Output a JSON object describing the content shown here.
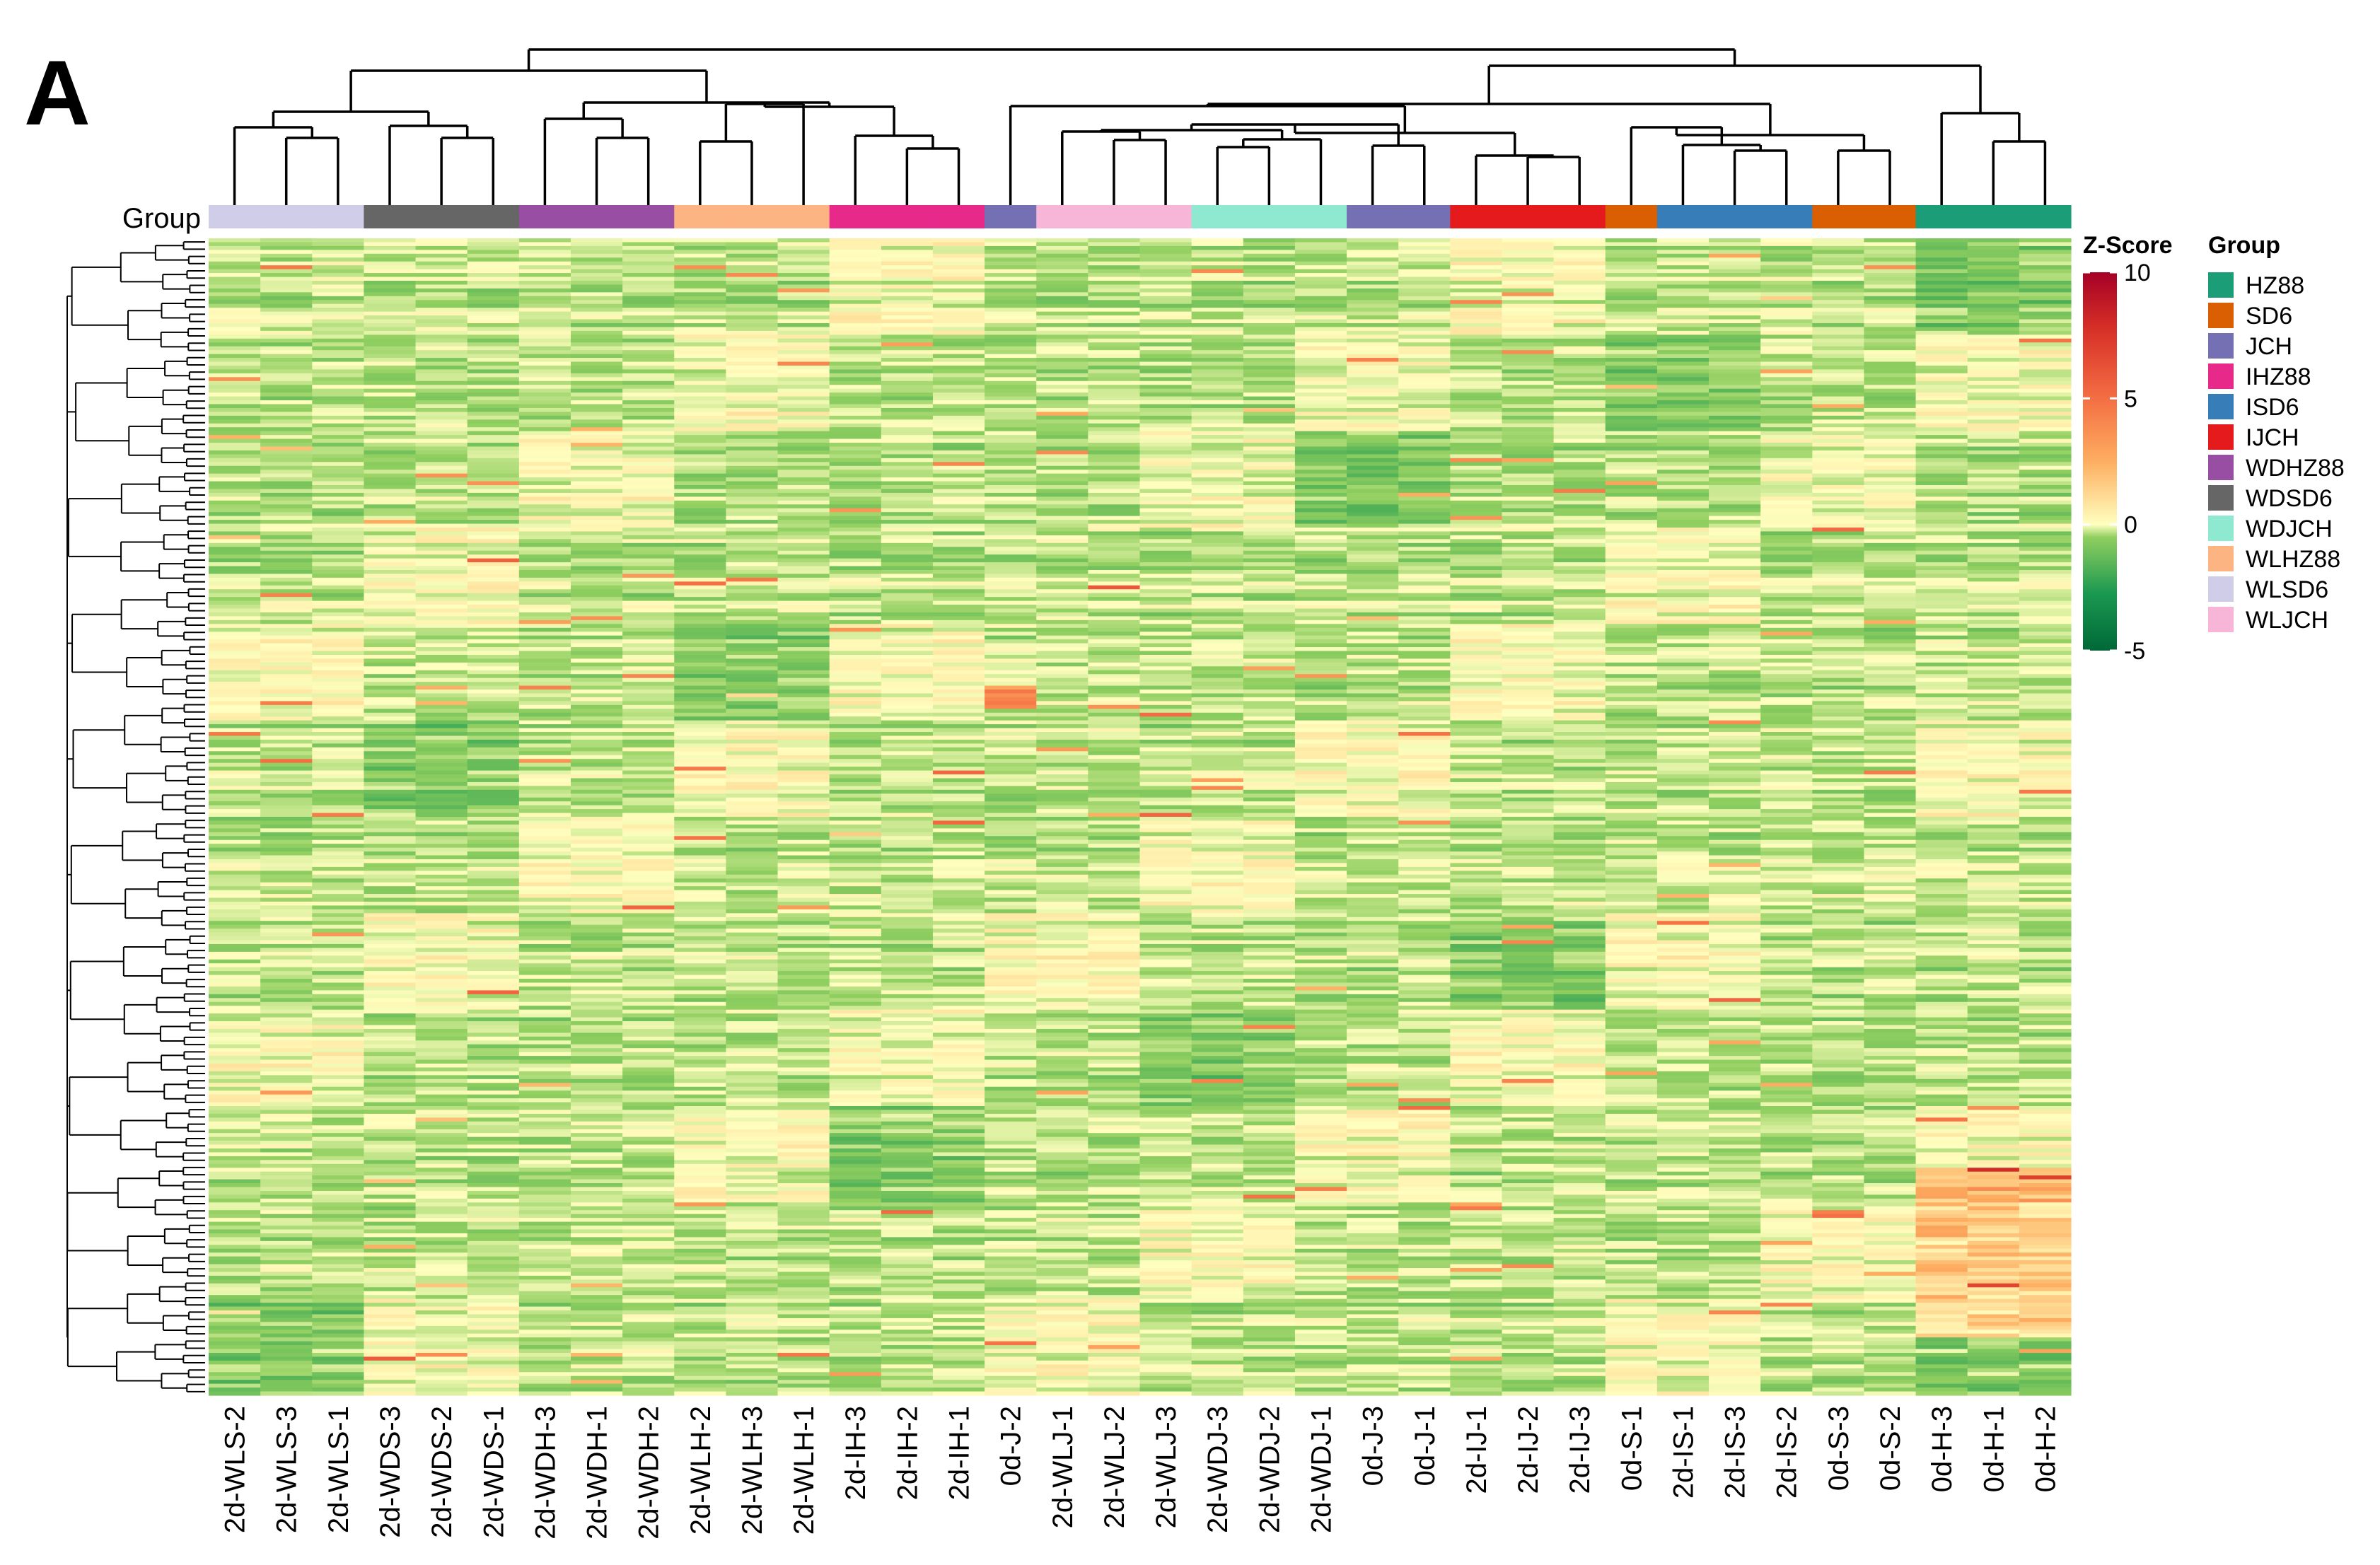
{
  "panel_label": "A",
  "chart_data": {
    "type": "heatmap",
    "columns": [
      "2d-WLS-2",
      "2d-WLS-3",
      "2d-WLS-1",
      "2d-WDS-3",
      "2d-WDS-2",
      "2d-WDS-1",
      "2d-WDH-3",
      "2d-WDH-1",
      "2d-WDH-2",
      "2d-WLH-2",
      "2d-WLH-3",
      "2d-WLH-1",
      "2d-IH-3",
      "2d-IH-2",
      "2d-IH-1",
      "0d-J-2",
      "2d-WLJ-1",
      "2d-WLJ-2",
      "2d-WLJ-3",
      "2d-WDJ-3",
      "2d-WDJ-2",
      "2d-WDJ-1",
      "0d-J-3",
      "0d-J-1",
      "2d-IJ-1",
      "2d-IJ-2",
      "2d-IJ-3",
      "0d-S-1",
      "2d-IS-1",
      "2d-IS-3",
      "2d-IS-2",
      "0d-S-3",
      "0d-S-2",
      "0d-H-3",
      "0d-H-1",
      "0d-H-2"
    ],
    "column_groups": [
      "WLSD6",
      "WLSD6",
      "WLSD6",
      "WDSD6",
      "WDSD6",
      "WDSD6",
      "WDHZ88",
      "WDHZ88",
      "WDHZ88",
      "WLHZ88",
      "WLHZ88",
      "WLHZ88",
      "IHZ88",
      "IHZ88",
      "IHZ88",
      "JCH",
      "WLJCH",
      "WLJCH",
      "WLJCH",
      "WDJCH",
      "WDJCH",
      "WDJCH",
      "JCH",
      "JCH",
      "IJCH",
      "IJCH",
      "IJCH",
      "SD6",
      "ISD6",
      "ISD6",
      "ISD6",
      "SD6",
      "SD6",
      "HZ88",
      "HZ88",
      "HZ88"
    ],
    "annotation_label": "Group",
    "colorbar": {
      "title": "Z-Score",
      "ticks": [
        "10",
        "5",
        "0",
        "-5"
      ],
      "range": [
        -5,
        10
      ]
    },
    "legend": {
      "title": "Group",
      "position": "right",
      "items": [
        {
          "name": "HZ88",
          "color": "#1b9e77"
        },
        {
          "name": "SD6",
          "color": "#d95f02"
        },
        {
          "name": "JCH",
          "color": "#7570b3"
        },
        {
          "name": "IHZ88",
          "color": "#e7298a"
        },
        {
          "name": "ISD6",
          "color": "#377eb8"
        },
        {
          "name": "IJCH",
          "color": "#e41a1c"
        },
        {
          "name": "WDHZ88",
          "color": "#984ea3"
        },
        {
          "name": "WDSD6",
          "color": "#666666"
        },
        {
          "name": "WDJCH",
          "color": "#8fe8d0"
        },
        {
          "name": "WLHZ88",
          "color": "#fdb483"
        },
        {
          "name": "WLSD6",
          "color": "#cfcde8"
        },
        {
          "name": "WLJCH",
          "color": "#f7b6d8"
        }
      ]
    },
    "color_scale": {
      "low": "#006837",
      "mid": "#ffffbf",
      "high": "#a50026"
    },
    "row_dendrogram": true,
    "column_dendrogram": true
  }
}
